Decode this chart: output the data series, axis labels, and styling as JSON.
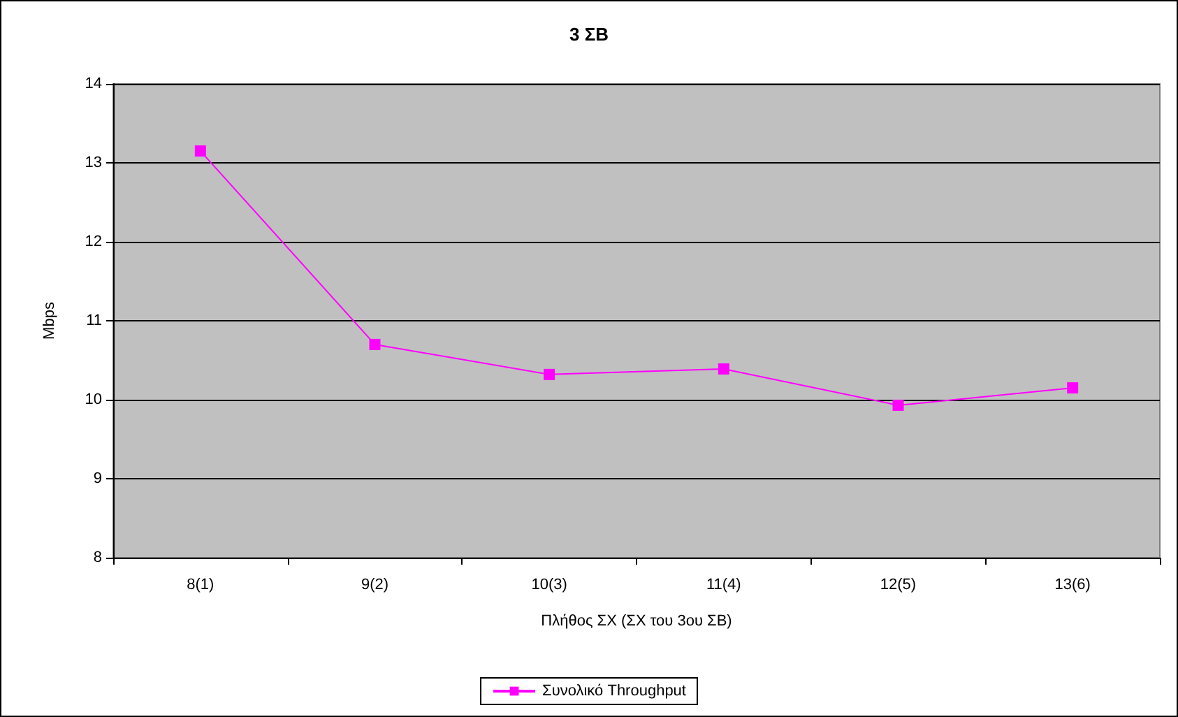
{
  "chart_data": {
    "type": "line",
    "title": "3 ΣΒ",
    "xlabel": "Πλήθος ΣΧ (ΣΧ του 3ου ΣΒ)",
    "ylabel": "Mbps",
    "categories": [
      "8(1)",
      "9(2)",
      "10(3)",
      "11(4)",
      "12(5)",
      "13(6)"
    ],
    "series": [
      {
        "name": "Συνολικό Throughput",
        "color": "#ff00ff",
        "values": [
          13.15,
          10.7,
          10.32,
          10.39,
          9.93,
          10.15
        ]
      }
    ],
    "ylim": [
      8,
      14
    ],
    "yticks": [
      8,
      9,
      10,
      11,
      12,
      13,
      14
    ],
    "grid": "y",
    "legend": "bottom",
    "marker": "square"
  }
}
